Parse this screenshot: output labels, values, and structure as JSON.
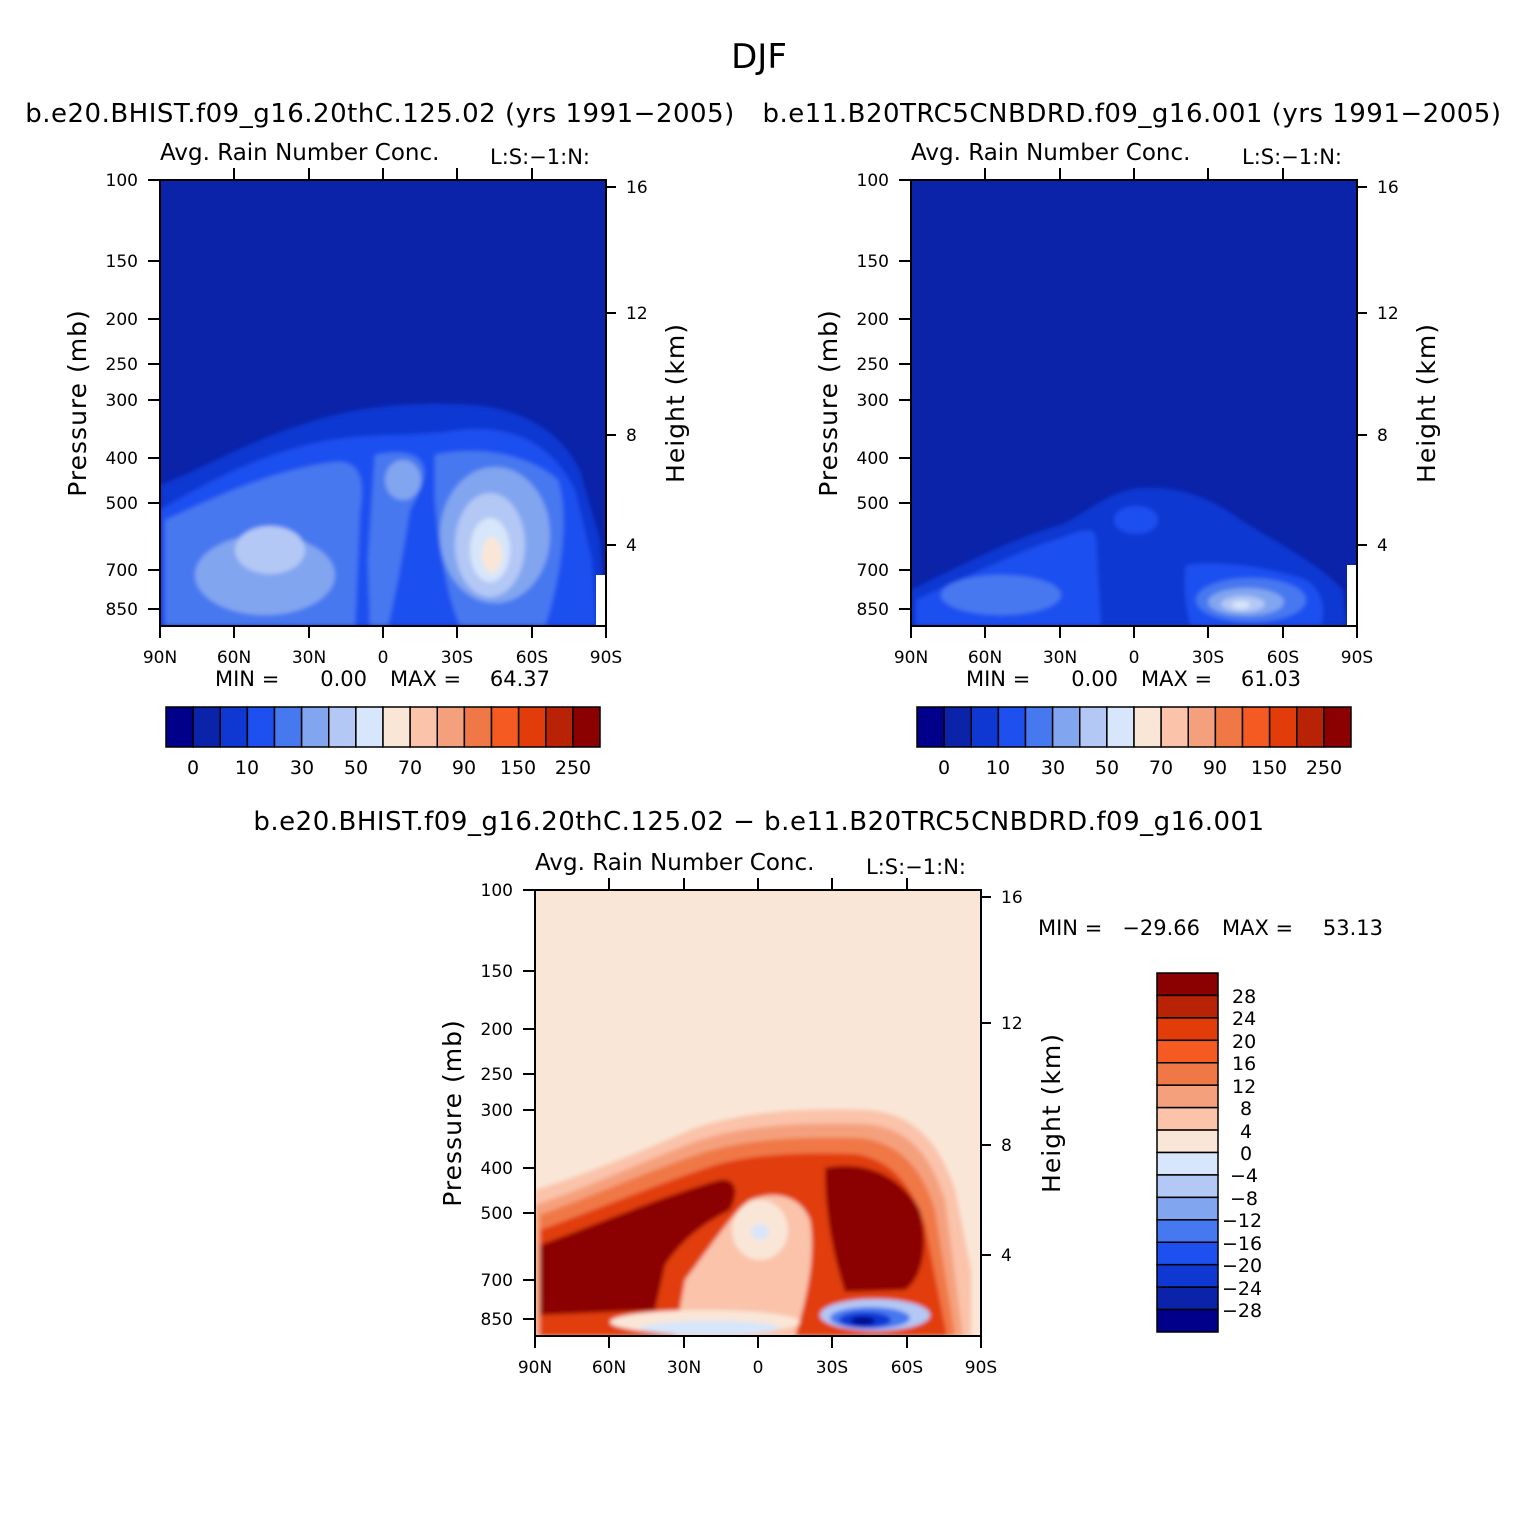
{
  "figure_title": "DJF",
  "chart_data": [
    {
      "panel": "top-left",
      "type": "heatmap",
      "case_title": "b.e20.BHIST.f09_g16.20thC.125.02 (yrs 1991-2005)",
      "variable_title": "Avg. Rain Number Conc.",
      "corner_label": "L:S:-1:N:",
      "xlabel": "",
      "ylabel": "Pressure (mb)",
      "y2label": "Height (km)",
      "x_ticks": [
        "90N",
        "60N",
        "30N",
        "0",
        "30S",
        "60S",
        "90S"
      ],
      "y_ticks": [
        "100",
        "150",
        "200",
        "250",
        "300",
        "400",
        "500",
        "700",
        "850"
      ],
      "y2_ticks": [
        "16",
        "12",
        "8",
        "4"
      ],
      "min_label": "MIN =",
      "min_value": "0.00",
      "max_label": "MAX =",
      "max_value": "64.37",
      "colorbar_labels": [
        "0",
        "10",
        "30",
        "50",
        "70",
        "90",
        "150",
        "250"
      ],
      "features": [
        {
          "name": "cloud-top-envelope",
          "lat_range": [
            90,
            -90
          ],
          "top_pressure": 300,
          "level": 1
        },
        {
          "name": "midlatitude-nh-maximum",
          "lat": 45,
          "pressure": 650,
          "level": 5
        },
        {
          "name": "equatorial-maximum",
          "lat": 0,
          "pressure": 420,
          "level": 4
        },
        {
          "name": "sh-maximum",
          "lat": -45,
          "pressure": 650,
          "value": 64.37,
          "level": 8
        }
      ]
    },
    {
      "panel": "top-right",
      "type": "heatmap",
      "case_title": "b.e11.B20TRC5CNBDRD.f09_g16.001 (yrs 1991-2005)",
      "variable_title": "Avg. Rain Number Conc.",
      "corner_label": "L:S:-1:N:",
      "xlabel": "",
      "ylabel": "Pressure (mb)",
      "y2label": "Height (km)",
      "x_ticks": [
        "90N",
        "60N",
        "30N",
        "0",
        "30S",
        "60S",
        "90S"
      ],
      "y_ticks": [
        "100",
        "150",
        "200",
        "250",
        "300",
        "400",
        "500",
        "700",
        "850"
      ],
      "y2_ticks": [
        "16",
        "12",
        "8",
        "4"
      ],
      "min_label": "MIN =",
      "min_value": "0.00",
      "max_label": "MAX =",
      "max_value": "61.03",
      "colorbar_labels": [
        "0",
        "10",
        "30",
        "50",
        "70",
        "90",
        "150",
        "250"
      ],
      "features": [
        {
          "name": "cloud-top-envelope",
          "lat_range": [
            90,
            -90
          ],
          "top_pressure": 480,
          "level": 1
        },
        {
          "name": "sh-low-level-maximum",
          "lat": -45,
          "pressure": 850,
          "value": 61.03,
          "level": 7
        }
      ]
    },
    {
      "panel": "bottom",
      "type": "heatmap",
      "case_title": "b.e20.BHIST.f09_g16.20thC.125.02 - b.e11.B20TRC5CNBDRD.f09_g16.001",
      "variable_title": "Avg. Rain Number Conc.",
      "corner_label": "L:S:-1:N:",
      "xlabel": "",
      "ylabel": "Pressure (mb)",
      "y2label": "Height (km)",
      "x_ticks": [
        "90N",
        "60N",
        "30N",
        "0",
        "30S",
        "60S",
        "90S"
      ],
      "y_ticks": [
        "100",
        "150",
        "200",
        "250",
        "300",
        "400",
        "500",
        "700",
        "850"
      ],
      "y2_ticks": [
        "16",
        "12",
        "8",
        "4"
      ],
      "min_label": "MIN =",
      "min_value": "-29.66",
      "max_label": "MAX =",
      "max_value": "53.13",
      "colorbar_labels": [
        "28",
        "24",
        "20",
        "16",
        "12",
        "8",
        "4",
        "0",
        "-4",
        "-8",
        "-12",
        "-16",
        "-20",
        "-24",
        "-28"
      ],
      "features": [
        {
          "name": "positive-difference-envelope",
          "lat_range": [
            90,
            -90
          ],
          "top_pressure": 300,
          "value": 53.13
        },
        {
          "name": "sh-low-level-negative",
          "lat": -45,
          "pressure": 850,
          "value": -29.66
        }
      ]
    }
  ],
  "colors": {
    "abs_palette": [
      "#00008b",
      "#0a23a8",
      "#0f37d2",
      "#1e50f0",
      "#4678f0",
      "#82a5f0",
      "#b4c8f5",
      "#d7e6fa",
      "#fae6d7",
      "#fac3aa",
      "#f5a07d",
      "#f07846",
      "#f55a23",
      "#e13c0a",
      "#b92305",
      "#8b0000"
    ],
    "diff_palette": [
      "#8b0000",
      "#b92305",
      "#e13c0a",
      "#f55a23",
      "#f07846",
      "#f5a07d",
      "#fac3aa",
      "#fae6d7",
      "#d7e6fa",
      "#b4c8f5",
      "#82a5f0",
      "#4678f0",
      "#1e50f0",
      "#0f37d2",
      "#0a23a8",
      "#00008b"
    ]
  }
}
